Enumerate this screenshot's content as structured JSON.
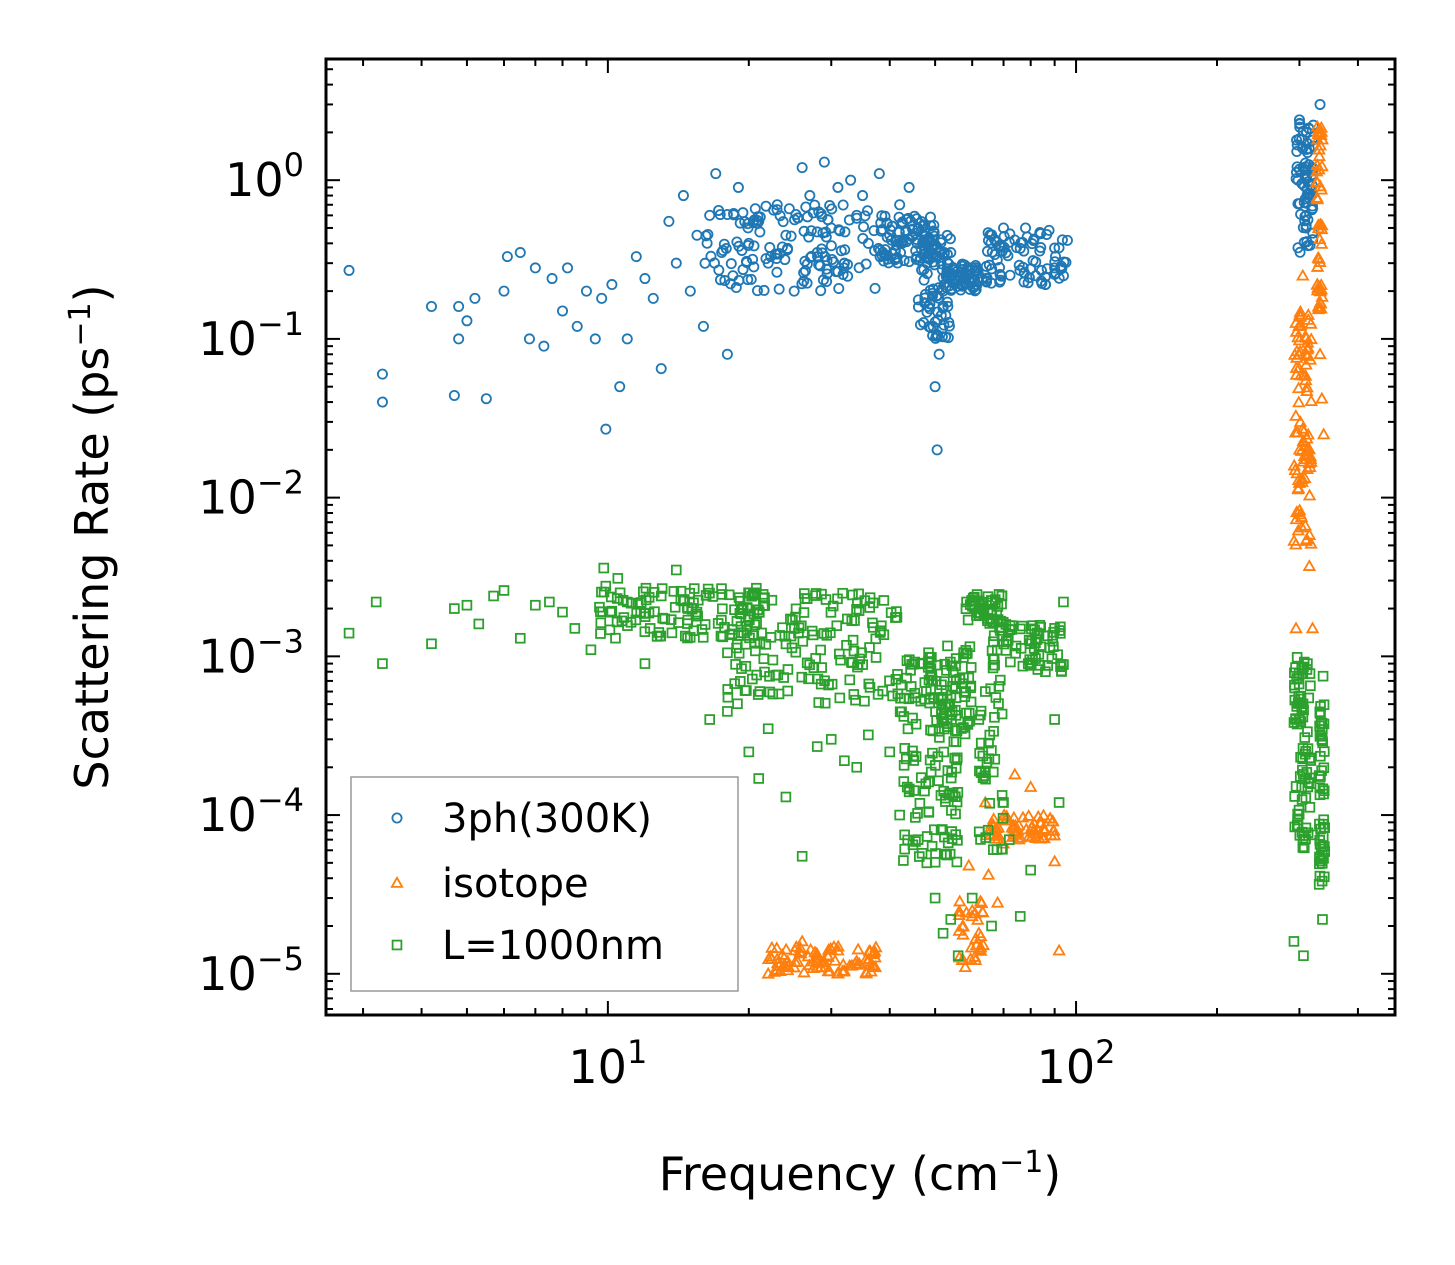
{
  "chart_data": {
    "type": "scatter",
    "xlabel": "Frequency (cm",
    "xlabel_sup": "−1",
    "xlabel_end": ")",
    "ylabel": "Scattering Rate (ps",
    "ylabel_sup": "−1",
    "ylabel_end": ")",
    "xscale": "log",
    "yscale": "log",
    "xlim": [
      2.5,
      480
    ],
    "ylim": [
      5.5e-06,
      5.8
    ],
    "x_ticks": [
      {
        "value": 10,
        "base": "10",
        "exp": "1"
      },
      {
        "value": 100,
        "base": "10",
        "exp": "2"
      }
    ],
    "y_ticks": [
      {
        "value": 1,
        "base": "10",
        "exp": "0"
      },
      {
        "value": 0.1,
        "base": "10",
        "exp": "−1"
      },
      {
        "value": 0.01,
        "base": "10",
        "exp": "−2"
      },
      {
        "value": 0.001,
        "base": "10",
        "exp": "−3"
      },
      {
        "value": 0.0001,
        "base": "10",
        "exp": "−4"
      },
      {
        "value": 1e-05,
        "base": "10",
        "exp": "−5"
      }
    ],
    "legend_position": "lower-left",
    "series": [
      {
        "name": "3ph(300K)",
        "marker": "circle",
        "color": "#1f77b4",
        "points": [
          [
            2.8,
            0.27
          ],
          [
            3.3,
            0.06
          ],
          [
            3.3,
            0.04
          ],
          [
            4.2,
            0.16
          ],
          [
            4.7,
            0.044
          ],
          [
            4.8,
            0.16
          ],
          [
            4.8,
            0.1
          ],
          [
            5.0,
            0.13
          ],
          [
            5.2,
            0.18
          ],
          [
            5.5,
            0.042
          ],
          [
            6.0,
            0.2
          ],
          [
            6.1,
            0.33
          ],
          [
            6.5,
            0.35
          ],
          [
            6.8,
            0.1
          ],
          [
            7.0,
            0.28
          ],
          [
            7.3,
            0.09
          ],
          [
            7.6,
            0.24
          ],
          [
            8.0,
            0.15
          ],
          [
            8.2,
            0.28
          ],
          [
            8.6,
            0.12
          ],
          [
            9.0,
            0.2
          ],
          [
            9.4,
            0.1
          ],
          [
            9.7,
            0.18
          ],
          [
            9.9,
            0.027
          ],
          [
            10.2,
            0.22
          ],
          [
            10.6,
            0.05
          ],
          [
            11.0,
            0.1
          ],
          [
            11.5,
            0.33
          ],
          [
            12.0,
            0.24
          ],
          [
            12.5,
            0.18
          ],
          [
            13.0,
            0.065
          ],
          [
            13.5,
            0.55
          ],
          [
            14.0,
            0.3
          ],
          [
            14.5,
            0.8
          ],
          [
            15.0,
            0.2
          ],
          [
            15.5,
            0.45
          ],
          [
            16.0,
            0.12
          ],
          [
            16.5,
            0.6
          ],
          [
            17.0,
            1.1
          ],
          [
            17.5,
            0.35
          ],
          [
            18.0,
            0.08
          ],
          [
            18.5,
            0.25
          ],
          [
            19.0,
            0.9
          ],
          [
            20.0,
            0.4
          ],
          [
            21.0,
            0.55
          ],
          [
            22.0,
            0.3
          ],
          [
            23.0,
            0.7
          ],
          [
            24.0,
            0.45
          ],
          [
            25.0,
            0.2
          ],
          [
            26.0,
            1.2
          ],
          [
            27.0,
            0.8
          ],
          [
            28.0,
            0.35
          ],
          [
            29.0,
            1.3
          ],
          [
            30.0,
            0.5
          ],
          [
            31.0,
            0.9
          ],
          [
            32.0,
            0.3
          ],
          [
            33.0,
            1.0
          ],
          [
            34.0,
            0.6
          ],
          [
            35.0,
            0.8
          ],
          [
            36.0,
            0.4
          ],
          [
            38.0,
            1.1
          ],
          [
            40.0,
            0.45
          ],
          [
            42.0,
            0.7
          ],
          [
            44.0,
            0.9
          ],
          [
            46.0,
            0.5
          ],
          [
            48.0,
            0.3
          ],
          [
            49.5,
            0.12
          ],
          [
            50.0,
            0.05
          ],
          [
            50.5,
            0.02
          ],
          [
            51.0,
            0.08
          ],
          [
            52.0,
            0.2
          ],
          [
            54.0,
            0.35
          ],
          [
            56.0,
            0.25
          ],
          [
            58.0,
            0.22
          ],
          [
            60.0,
            0.28
          ],
          [
            63.0,
            0.24
          ],
          [
            66.0,
            0.45
          ],
          [
            70.0,
            0.5
          ],
          [
            74.0,
            0.42
          ],
          [
            78.0,
            0.5
          ],
          [
            82.0,
            0.25
          ],
          [
            86.0,
            0.22
          ],
          [
            90.0,
            0.28
          ],
          [
            94.0,
            0.25
          ],
          [
            300.0,
            2.4
          ],
          [
            305.0,
            1.6
          ],
          [
            310.0,
            0.5
          ],
          [
            315.0,
            2.1
          ],
          [
            320.0,
            1.2
          ],
          [
            332.0,
            3.0
          ]
        ],
        "bands": [
          {
            "x": [
              16,
              38
            ],
            "y": [
              0.2,
              0.7
            ],
            "n": 140
          },
          {
            "x": [
              38,
              50
            ],
            "y": [
              0.3,
              0.6
            ],
            "n": 90
          },
          {
            "x": [
              46,
              54
            ],
            "y": [
              0.1,
              0.45
            ],
            "n": 80
          },
          {
            "x": [
              52,
              62
            ],
            "y": [
              0.2,
              0.3
            ],
            "n": 60
          },
          {
            "x": [
              64,
              96
            ],
            "y": [
              0.22,
              0.5
            ],
            "n": 80
          },
          {
            "x": [
              295,
              322
            ],
            "y": [
              0.35,
              2.4
            ],
            "n": 70
          }
        ]
      },
      {
        "name": "isotope",
        "marker": "triangle",
        "color": "#ff7f0e",
        "points": [
          [
            22.0,
            1e-05
          ],
          [
            24.0,
            1.1e-05
          ],
          [
            26.0,
            1.6e-05
          ],
          [
            28.0,
            1.1e-05
          ],
          [
            31.0,
            1.4e-05
          ],
          [
            34.0,
            1.2e-05
          ],
          [
            37.0,
            1.1e-05
          ],
          [
            58.0,
            1.1e-05
          ],
          [
            59.0,
            4.8e-05
          ],
          [
            60.0,
            2.5e-05
          ],
          [
            62.0,
            1.8e-05
          ],
          [
            64.0,
            0.00012
          ],
          [
            65.0,
            4.2e-05
          ],
          [
            68.0,
            2.8e-05
          ],
          [
            70.0,
            6.6e-05
          ],
          [
            74.0,
            0.00018
          ],
          [
            76.0,
            7.2e-05
          ],
          [
            80.0,
            0.00015
          ],
          [
            84.0,
            8.8e-05
          ],
          [
            90.0,
            5.1e-05
          ],
          [
            92.0,
            1.4e-05
          ],
          [
            295.0,
            0.0015
          ],
          [
            300.0,
            0.02
          ],
          [
            305.0,
            0.25
          ],
          [
            310.0,
            0.08
          ],
          [
            315.0,
            0.0037
          ],
          [
            320.0,
            0.0015
          ],
          [
            328.0,
            1.8
          ],
          [
            332.0,
            0.08
          ],
          [
            335.0,
            0.042
          ],
          [
            338.0,
            0.025
          ]
        ],
        "bands": [
          {
            "x": [
              22,
              38
            ],
            "y": [
              1e-05,
              1.5e-05
            ],
            "n": 80
          },
          {
            "x": [
              56,
              64
            ],
            "y": [
              1.2e-05,
              3e-05
            ],
            "n": 30
          },
          {
            "x": [
              64,
              90
            ],
            "y": [
              7e-05,
              0.0001
            ],
            "n": 60
          },
          {
            "x": [
              292,
              318
            ],
            "y": [
              0.005,
              0.2
            ],
            "n": 90
          },
          {
            "x": [
              326,
              336
            ],
            "y": [
              0.15,
              2.2
            ],
            "n": 50
          }
        ]
      },
      {
        "name": "L=1000nm",
        "marker": "square",
        "color": "#2ca02c",
        "points": [
          [
            2.8,
            0.0014
          ],
          [
            3.2,
            0.0022
          ],
          [
            3.3,
            0.0009
          ],
          [
            4.2,
            0.0012
          ],
          [
            4.7,
            0.002
          ],
          [
            5.0,
            0.0021
          ],
          [
            5.3,
            0.0016
          ],
          [
            5.7,
            0.0024
          ],
          [
            6.0,
            0.0026
          ],
          [
            6.5,
            0.0013
          ],
          [
            7.0,
            0.0021
          ],
          [
            7.5,
            0.0022
          ],
          [
            8.0,
            0.0019
          ],
          [
            8.5,
            0.0015
          ],
          [
            9.2,
            0.0011
          ],
          [
            9.8,
            0.0036
          ],
          [
            10.5,
            0.0031
          ],
          [
            11.0,
            0.0022
          ],
          [
            12.0,
            0.0009
          ],
          [
            13.0,
            0.0024
          ],
          [
            14.0,
            0.0035
          ],
          [
            15.5,
            0.0019
          ],
          [
            16.5,
            0.0004
          ],
          [
            18.0,
            0.00045
          ],
          [
            20.0,
            0.00025
          ],
          [
            21.0,
            0.00017
          ],
          [
            22.0,
            0.00035
          ],
          [
            24.0,
            0.00013
          ],
          [
            26.0,
            5.5e-05
          ],
          [
            28.0,
            0.00027
          ],
          [
            30.0,
            0.0003
          ],
          [
            32.0,
            0.00022
          ],
          [
            34.0,
            0.0002
          ],
          [
            36.0,
            0.00032
          ],
          [
            40.0,
            0.00025
          ],
          [
            42.0,
            0.0001
          ],
          [
            44.0,
            0.00014
          ],
          [
            46.0,
            7e-05
          ],
          [
            48.0,
            5e-05
          ],
          [
            50.0,
            3e-05
          ],
          [
            52.0,
            1.8e-05
          ],
          [
            54.0,
            2.2e-05
          ],
          [
            56.0,
            1.3e-05
          ],
          [
            60.0,
            3e-05
          ],
          [
            62.0,
            0.0004
          ],
          [
            64.0,
            0.0006
          ],
          [
            66.0,
            2e-05
          ],
          [
            70.0,
            0.00012
          ],
          [
            72.0,
            7e-05
          ],
          [
            76.0,
            2.3e-05
          ],
          [
            80.0,
            4.5e-05
          ],
          [
            86.0,
            0.0008
          ],
          [
            90.0,
            0.0004
          ],
          [
            92.0,
            0.00012
          ],
          [
            94.0,
            0.0022
          ],
          [
            292.0,
            1.6e-05
          ],
          [
            300.0,
            0.0004
          ],
          [
            306.0,
            1.3e-05
          ],
          [
            312.0,
            0.0009
          ],
          [
            320.0,
            7.5e-05
          ],
          [
            336.0,
            2.2e-05
          ],
          [
            337.0,
            0.00075
          ]
        ],
        "bands": [
          {
            "x": [
              9.5,
              22
            ],
            "y": [
              0.0013,
              0.0028
            ],
            "n": 110
          },
          {
            "x": [
              18,
              42
            ],
            "y": [
              0.0005,
              0.0025
            ],
            "n": 160
          },
          {
            "x": [
              42,
              56
            ],
            "y": [
              5e-05,
              0.001
            ],
            "n": 130
          },
          {
            "x": [
              48,
              60
            ],
            "y": [
              0.0003,
              0.0012
            ],
            "n": 60
          },
          {
            "x": [
              58,
              70
            ],
            "y": [
              0.0016,
              0.0025
            ],
            "n": 50
          },
          {
            "x": [
              66,
              94
            ],
            "y": [
              0.0008,
              0.0016
            ],
            "n": 70
          },
          {
            "x": [
              62,
              70
            ],
            "y": [
              6e-05,
              0.0009
            ],
            "n": 40
          },
          {
            "x": [
              292,
              318
            ],
            "y": [
              6e-05,
              0.001
            ],
            "n": 80
          },
          {
            "x": [
              330,
              340
            ],
            "y": [
              3.5e-05,
              0.0005
            ],
            "n": 50
          }
        ]
      }
    ]
  }
}
